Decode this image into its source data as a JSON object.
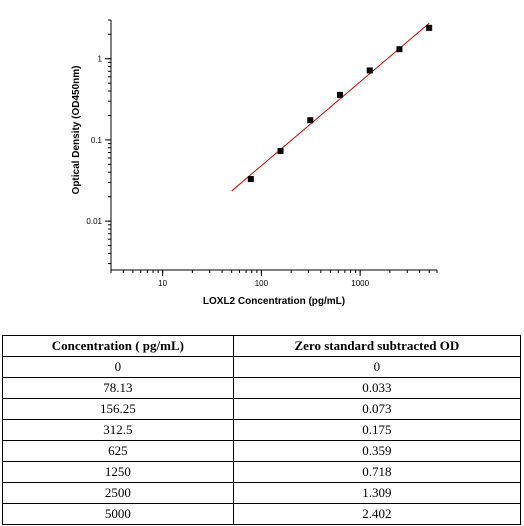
{
  "chart_data": {
    "type": "scatter",
    "xlabel": "LOXL2 Concentration (pg/mL)",
    "ylabel": "Optical Density (OD450nm)",
    "x_scale": "log",
    "y_scale": "log",
    "xlim": [
      3,
      6000
    ],
    "ylim": [
      0.0025,
      3
    ],
    "x_ticks": [
      10,
      100,
      1000
    ],
    "x_tick_labels": [
      "10",
      "100",
      "1000"
    ],
    "y_ticks": [
      0.01,
      0.1,
      1
    ],
    "y_tick_labels": [
      "0.01",
      "0.1",
      "1"
    ],
    "grid": false,
    "fit_line": {
      "x_start": 50,
      "x_end": 5000,
      "color": "#cc0000"
    },
    "points": [
      {
        "x": 78.13,
        "y": 0.033
      },
      {
        "x": 156.25,
        "y": 0.073
      },
      {
        "x": 312.5,
        "y": 0.175
      },
      {
        "x": 625,
        "y": 0.359
      },
      {
        "x": 1250,
        "y": 0.718
      },
      {
        "x": 2500,
        "y": 1.309
      },
      {
        "x": 5000,
        "y": 2.402
      }
    ]
  },
  "table": {
    "headers": [
      "Concentration ( pg/mL)",
      "Zero standard subtracted OD"
    ],
    "rows": [
      [
        "0",
        "0"
      ],
      [
        "78.13",
        "0.033"
      ],
      [
        "156.25",
        "0.073"
      ],
      [
        "312.5",
        "0.175"
      ],
      [
        "625",
        "0.359"
      ],
      [
        "1250",
        "0.718"
      ],
      [
        "2500",
        "1.309"
      ],
      [
        "5000",
        "2.402"
      ]
    ]
  }
}
